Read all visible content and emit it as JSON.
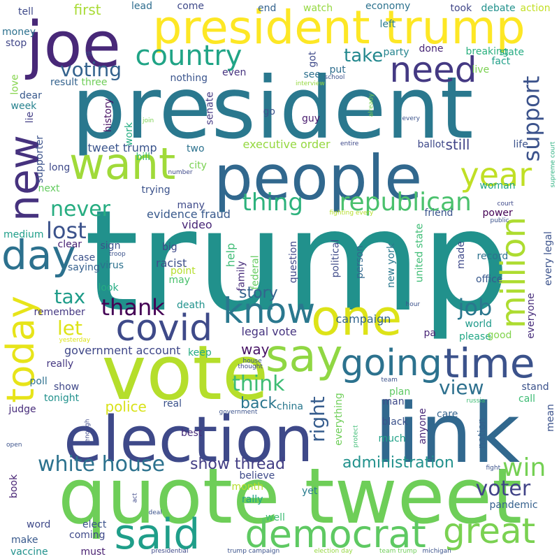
{
  "words": [
    {
      "text": "trump",
      "color": "#21918c"
    },
    {
      "text": "president",
      "color": "#2a788e"
    },
    {
      "text": "link",
      "color": "#31688e"
    },
    {
      "text": "quote tweet",
      "color": "#6ece58"
    },
    {
      "text": "vote",
      "color": "#b5de2b"
    },
    {
      "text": "election",
      "color": "#3e4989"
    },
    {
      "text": "people",
      "color": "#31688e"
    },
    {
      "text": "president trump",
      "color": "#fde725"
    },
    {
      "text": "joe",
      "color": "#482878"
    },
    {
      "text": "one",
      "color": "#dde318"
    },
    {
      "text": "say",
      "color": "#90d743"
    },
    {
      "text": "going",
      "color": "#2c728e"
    },
    {
      "text": "time",
      "color": "#3b528b"
    },
    {
      "text": "democrat",
      "color": "#5ec962"
    },
    {
      "text": "said",
      "color": "#1f9e89"
    },
    {
      "text": "great",
      "color": "#7ad151"
    },
    {
      "text": "want",
      "color": "#a0da39"
    },
    {
      "text": "country",
      "color": "#20a486"
    },
    {
      "text": "need",
      "color": "#443983"
    },
    {
      "text": "covid",
      "color": "#3e4a89"
    },
    {
      "text": "new",
      "color": "#46327e"
    },
    {
      "text": "day",
      "color": "#2c718e"
    },
    {
      "text": "today",
      "color": "#e7e419"
    },
    {
      "text": "know",
      "color": "#2a788e"
    },
    {
      "text": "year",
      "color": "#c0df25"
    },
    {
      "text": "million",
      "color": "#addc30"
    },
    {
      "text": "republican",
      "color": "#4ac16d"
    },
    {
      "text": "thing",
      "color": "#2db27d"
    },
    {
      "text": "support",
      "color": "#3b528b"
    },
    {
      "text": "white house",
      "color": "#2c728e"
    },
    {
      "text": "win",
      "color": "#75d054"
    },
    {
      "text": "voter",
      "color": "#414487"
    },
    {
      "text": "thank",
      "color": "#440154"
    },
    {
      "text": "job",
      "color": "#2a778e"
    },
    {
      "text": "lost",
      "color": "#3b528b"
    },
    {
      "text": "never",
      "color": "#27ad81"
    },
    {
      "text": "think",
      "color": "#3dbc74"
    },
    {
      "text": "voting",
      "color": "#33628d"
    },
    {
      "text": "take",
      "color": "#23888e"
    },
    {
      "text": "tax",
      "color": "#1e9c89"
    },
    {
      "text": "view",
      "color": "#2d708e"
    },
    {
      "text": "let",
      "color": "#dde318"
    },
    {
      "text": "right",
      "color": "#365c8d"
    },
    {
      "text": "administration",
      "color": "#21918c"
    },
    {
      "text": "story",
      "color": "#33638d"
    },
    {
      "text": "show thread",
      "color": "#433e85"
    },
    {
      "text": "still",
      "color": "#404387"
    },
    {
      "text": "back",
      "color": "#2a768e"
    },
    {
      "text": "police",
      "color": "#d8e219"
    },
    {
      "text": "way",
      "color": "#471365"
    },
    {
      "text": "first",
      "color": "#a8db34"
    },
    {
      "text": "executive order",
      "color": "#95d840"
    },
    {
      "text": "evidence fraud",
      "color": "#38598c"
    },
    {
      "text": "tweet trump",
      "color": "#3a548c"
    },
    {
      "text": "legal vote",
      "color": "#463480"
    },
    {
      "text": "government account",
      "color": "#3f4788"
    },
    {
      "text": "racist",
      "color": "#3c4f8a"
    },
    {
      "text": "help",
      "color": "#3dbc74"
    },
    {
      "text": "campaign",
      "color": "#32658e"
    },
    {
      "text": "video",
      "color": "#482677"
    },
    {
      "text": "nothing",
      "color": "#3a548c"
    },
    {
      "text": "history",
      "color": "#471063"
    },
    {
      "text": "federal",
      "color": "#63cb5f"
    },
    {
      "text": "family",
      "color": "#472c7a"
    },
    {
      "text": "political",
      "color": "#3e4a89"
    },
    {
      "text": "question",
      "color": "#3f4889"
    },
    {
      "text": "person",
      "color": "#31688e"
    },
    {
      "text": "new york",
      "color": "#2a788e"
    },
    {
      "text": "united state",
      "color": "#3dbc74"
    },
    {
      "text": "made",
      "color": "#3e4989"
    },
    {
      "text": "record",
      "color": "#2d718e"
    },
    {
      "text": "office",
      "color": "#38588c"
    },
    {
      "text": "everyone",
      "color": "#472d7b"
    },
    {
      "text": "every legal",
      "color": "#3b528b"
    },
    {
      "text": "world",
      "color": "#1f9a8a"
    },
    {
      "text": "please",
      "color": "#22a785"
    },
    {
      "text": "good",
      "color": "#81d34d"
    },
    {
      "text": "pa",
      "color": "#482576"
    },
    {
      "text": "remember",
      "color": "#453882"
    },
    {
      "text": "death",
      "color": "#20928c"
    },
    {
      "text": "look",
      "color": "#25ac82"
    },
    {
      "text": "sign",
      "color": "#3b528b"
    },
    {
      "text": "big",
      "color": "#3e4989"
    },
    {
      "text": "point",
      "color": "#b5de2b"
    },
    {
      "text": "may",
      "color": "#4ac16d"
    },
    {
      "text": "virus",
      "color": "#2c718e"
    },
    {
      "text": "clear",
      "color": "#482173"
    },
    {
      "text": "saying",
      "color": "#34608d"
    },
    {
      "text": "case",
      "color": "#3b528b"
    },
    {
      "text": "trying",
      "color": "#3b528b"
    },
    {
      "text": "many",
      "color": "#3e4a89"
    },
    {
      "text": "city",
      "color": "#7ad151"
    },
    {
      "text": "two",
      "color": "#2c728e"
    },
    {
      "text": "bill",
      "color": "#3dbc74"
    },
    {
      "text": "work",
      "color": "#25ac82"
    },
    {
      "text": "senate",
      "color": "#443983"
    },
    {
      "text": "guy",
      "color": "#481c6e"
    },
    {
      "text": "go",
      "color": "#3b528b"
    },
    {
      "text": "even",
      "color": "#46337f"
    },
    {
      "text": "see",
      "color": "#2d708e"
    },
    {
      "text": "put",
      "color": "#2e6e8e"
    },
    {
      "text": "got",
      "color": "#3e4989"
    },
    {
      "text": "done",
      "color": "#482777"
    },
    {
      "text": "party",
      "color": "#25848e"
    },
    {
      "text": "left",
      "color": "#287d8e"
    },
    {
      "text": "economy",
      "color": "#2c728e"
    },
    {
      "text": "took",
      "color": "#404688"
    },
    {
      "text": "debate",
      "color": "#21918c"
    },
    {
      "text": "action",
      "color": "#c2df23"
    },
    {
      "text": "breaking",
      "color": "#2ab07f"
    },
    {
      "text": "state",
      "color": "#25ab82"
    },
    {
      "text": "fact",
      "color": "#1f9f88"
    },
    {
      "text": "live",
      "color": "#7ad151"
    },
    {
      "text": "watch",
      "color": "#95d840"
    },
    {
      "text": "end",
      "color": "#33628d"
    },
    {
      "text": "come",
      "color": "#3e4989"
    },
    {
      "text": "lead",
      "color": "#2e6d8e"
    },
    {
      "text": "tell",
      "color": "#3e4989"
    },
    {
      "text": "money",
      "color": "#2c718e"
    },
    {
      "text": "stop",
      "color": "#404688"
    },
    {
      "text": "result",
      "color": "#33628d"
    },
    {
      "text": "three",
      "color": "#6ece58"
    },
    {
      "text": "dear",
      "color": "#38598c"
    },
    {
      "text": "week",
      "color": "#26828e"
    },
    {
      "text": "love",
      "color": "#84d44b"
    },
    {
      "text": "lie",
      "color": "#433e85"
    },
    {
      "text": "supporter",
      "color": "#3b528b"
    },
    {
      "text": "long",
      "color": "#3e4989"
    },
    {
      "text": "next",
      "color": "#63cb5f"
    },
    {
      "text": "medium",
      "color": "#1f9e89"
    },
    {
      "text": "really",
      "color": "#453882"
    },
    {
      "text": "poll",
      "color": "#2d708e"
    },
    {
      "text": "show",
      "color": "#3f4889"
    },
    {
      "text": "tonight",
      "color": "#21918c"
    },
    {
      "text": "judge",
      "color": "#472c7a"
    },
    {
      "text": "book",
      "color": "#482475"
    },
    {
      "text": "word",
      "color": "#3e4989"
    },
    {
      "text": "make",
      "color": "#38598c"
    },
    {
      "text": "vaccine",
      "color": "#21918c"
    },
    {
      "text": "coming",
      "color": "#3e4989"
    },
    {
      "text": "elect",
      "color": "#3b528b"
    },
    {
      "text": "must",
      "color": "#481f70"
    },
    {
      "text": "well",
      "color": "#3dbc74"
    },
    {
      "text": "month",
      "color": "#b5de2b"
    },
    {
      "text": "rally",
      "color": "#20a486"
    },
    {
      "text": "yet",
      "color": "#287c8e"
    },
    {
      "text": "believe",
      "color": "#3e4a89"
    },
    {
      "text": "pandemic",
      "color": "#35608d"
    },
    {
      "text": "best",
      "color": "#472d7b"
    },
    {
      "text": "keep",
      "color": "#25ab82"
    },
    {
      "text": "real",
      "color": "#3b528b"
    },
    {
      "text": "china",
      "color": "#2a788e"
    },
    {
      "text": "much",
      "color": "#1fa187"
    },
    {
      "text": "black",
      "color": "#3b528b"
    },
    {
      "text": "anyone",
      "color": "#482878"
    },
    {
      "text": "man",
      "color": "#3e4a89"
    },
    {
      "text": "plan",
      "color": "#5ec962"
    },
    {
      "text": "care",
      "color": "#33638d"
    },
    {
      "text": "everything",
      "color": "#6ece58"
    },
    {
      "text": "nation",
      "color": "#34618d"
    },
    {
      "text": "stand",
      "color": "#3b528b"
    },
    {
      "text": "call",
      "color": "#3dbc74"
    },
    {
      "text": "mean",
      "color": "#3b528b"
    },
    {
      "text": "friend",
      "color": "#3a548c"
    },
    {
      "text": "power",
      "color": "#440154"
    },
    {
      "text": "woman",
      "color": "#20a486"
    },
    {
      "text": "life",
      "color": "#3b528b"
    },
    {
      "text": "ballot",
      "color": "#3e4989"
    },
    {
      "text": "interview",
      "color": "#95d840"
    },
    {
      "text": "school",
      "color": "#3b528b"
    },
    {
      "text": "already",
      "color": "#7ad151"
    },
    {
      "text": "every",
      "color": "#3b528b"
    },
    {
      "text": "entire",
      "color": "#3e4989"
    },
    {
      "text": "supreme court",
      "color": "#2ab07f"
    },
    {
      "text": "fighting every",
      "color": "#b5de2b"
    },
    {
      "text": "court",
      "color": "#3e4989"
    },
    {
      "text": "public",
      "color": "#3b528b"
    },
    {
      "text": "join",
      "color": "#7ad151"
    },
    {
      "text": "number",
      "color": "#3e4989"
    },
    {
      "text": "th",
      "color": "#3b528b"
    },
    {
      "text": "troop",
      "color": "#3b528b"
    },
    {
      "text": "yesterday",
      "color": "#dde318"
    },
    {
      "text": "house",
      "color": "#3b528b"
    },
    {
      "text": "thought",
      "color": "#3e4989"
    },
    {
      "text": "hour",
      "color": "#3b528b"
    },
    {
      "text": "team",
      "color": "#3b528b"
    },
    {
      "text": "russia",
      "color": "#3dbc74"
    },
    {
      "text": "government",
      "color": "#3b528b"
    },
    {
      "text": "enough",
      "color": "#3e4989"
    },
    {
      "text": "protect",
      "color": "#3dbc74"
    },
    {
      "text": "open",
      "color": "#3b528b"
    },
    {
      "text": "act",
      "color": "#3e4989"
    },
    {
      "text": "fight",
      "color": "#3b528b"
    },
    {
      "text": "deal",
      "color": "#3b528b"
    },
    {
      "text": "presidential",
      "color": "#3e4989"
    },
    {
      "text": "trump campaign",
      "color": "#3b528b"
    },
    {
      "text": "election day",
      "color": "#95d840"
    },
    {
      "text": "team trump",
      "color": "#6ece58"
    },
    {
      "text": "michigan",
      "color": "#3b528b"
    }
  ]
}
